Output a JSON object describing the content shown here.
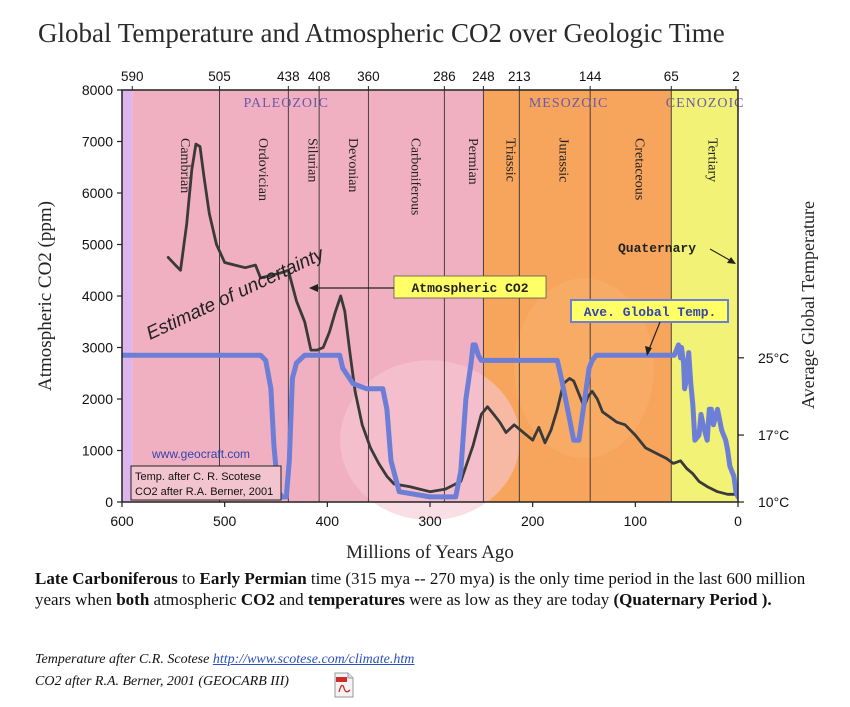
{
  "title": "Global Temperature and Atmospheric CO2 over Geologic Time",
  "chart_data": {
    "type": "line",
    "xlabel": "Millions of Years Ago",
    "ylabel": "Atmospheric CO2 (ppm)",
    "ylabel_right": "Average Global Temperature",
    "xlim": [
      600,
      0
    ],
    "ylim": [
      0,
      8000
    ],
    "x_ticks": [
      600,
      500,
      400,
      300,
      200,
      100,
      0
    ],
    "y_ticks": [
      0,
      1000,
      2000,
      3000,
      4000,
      5000,
      6000,
      7000,
      8000
    ],
    "top_ticks": [
      {
        "label": "590",
        "x": 590
      },
      {
        "label": "505",
        "x": 505
      },
      {
        "label": "438",
        "x": 438
      },
      {
        "label": "408",
        "x": 408
      },
      {
        "label": "360",
        "x": 360
      },
      {
        "label": "286",
        "x": 286
      },
      {
        "label": "248",
        "x": 248
      },
      {
        "label": "213",
        "x": 213
      },
      {
        "label": "144",
        "x": 144
      },
      {
        "label": "65",
        "x": 65
      },
      {
        "label": "2",
        "x": 2
      }
    ],
    "right_ticks": [
      {
        "label": "25°C",
        "ppm": 2800
      },
      {
        "label": "17°C",
        "ppm": 1300
      },
      {
        "label": "10°C",
        "ppm": 0
      }
    ],
    "eras": [
      {
        "name": "PALEOZOIC",
        "x_at": 440,
        "color": "#f0b0c2"
      },
      {
        "name": "MESOZOIC",
        "x_at": 165,
        "color": "#f7a45c"
      },
      {
        "name": "CENOZOIC",
        "x_at": 32,
        "color": "#f2f276"
      }
    ],
    "periods": [
      {
        "name": "Cambrian",
        "from": 590,
        "to": 505
      },
      {
        "name": "Ordovician",
        "from": 505,
        "to": 438
      },
      {
        "name": "Silurian",
        "from": 438,
        "to": 408
      },
      {
        "name": "Devonian",
        "from": 408,
        "to": 360
      },
      {
        "name": "Carboniferous",
        "from": 360,
        "to": 286
      },
      {
        "name": "Permian",
        "from": 286,
        "to": 248
      },
      {
        "name": "Triassic",
        "from": 248,
        "to": 213
      },
      {
        "name": "Jurassic",
        "from": 213,
        "to": 144
      },
      {
        "name": "Cretaceous",
        "from": 144,
        "to": 65
      },
      {
        "name": "Tertiary",
        "from": 65,
        "to": 2
      }
    ],
    "series": [
      {
        "name": "Atmospheric CO2",
        "color": "#3a3a3a",
        "x": [
          555,
          548,
          543,
          537,
          532,
          528,
          524,
          520,
          515,
          508,
          500,
          490,
          480,
          470,
          465,
          455,
          445,
          438,
          430,
          422,
          416,
          410,
          404,
          398,
          392,
          387,
          383,
          378,
          373,
          366,
          358,
          350,
          342,
          335,
          320,
          300,
          285,
          270,
          258,
          250,
          244,
          238,
          232,
          226,
          218,
          212,
          206,
          200,
          194,
          188,
          182,
          176,
          170,
          164,
          160,
          155,
          150,
          146,
          142,
          137,
          132,
          125,
          118,
          110,
          100,
          90,
          80,
          70,
          63,
          56,
          50,
          44,
          38,
          30,
          20,
          10,
          2
        ],
        "values": [
          4750,
          4600,
          4500,
          5400,
          6450,
          6950,
          6900,
          6300,
          5600,
          5000,
          4650,
          4600,
          4550,
          4600,
          4350,
          4400,
          4450,
          4500,
          3900,
          3500,
          2950,
          2950,
          3000,
          3300,
          3700,
          4000,
          3700,
          2900,
          2150,
          1500,
          1050,
          750,
          500,
          350,
          300,
          200,
          250,
          400,
          1100,
          1700,
          1850,
          1700,
          1550,
          1350,
          1500,
          1400,
          1300,
          1200,
          1450,
          1150,
          1400,
          1800,
          2300,
          2400,
          2350,
          2100,
          1850,
          2050,
          2150,
          2000,
          1750,
          1650,
          1550,
          1500,
          1300,
          1050,
          950,
          850,
          750,
          800,
          650,
          550,
          400,
          300,
          200,
          150,
          150
        ]
      },
      {
        "name": "Ave. Global Temp.",
        "color": "#6d7ed6",
        "x": [
          600,
          560,
          520,
          490,
          475,
          465,
          460,
          455,
          452,
          448,
          444,
          440,
          437,
          434,
          430,
          422,
          410,
          400,
          392,
          388,
          385,
          375,
          362,
          352,
          346,
          342,
          338,
          330,
          300,
          275,
          270,
          265,
          260,
          258,
          256,
          253,
          250,
          246,
          240,
          230,
          220,
          210,
          195,
          182,
          176,
          172,
          166,
          160,
          155,
          150,
          145,
          142,
          138,
          136,
          133,
          126,
          120,
          110,
          90,
          70,
          62,
          58,
          56,
          55,
          53,
          52,
          50,
          48,
          46,
          44,
          42,
          38,
          36,
          34,
          30,
          28,
          26,
          24,
          20,
          16,
          14,
          12,
          10,
          8,
          6,
          4,
          2,
          0
        ],
        "values": [
          2850,
          2850,
          2850,
          2850,
          2850,
          2850,
          2750,
          2200,
          1100,
          200,
          100,
          100,
          800,
          2400,
          2700,
          2850,
          2850,
          2850,
          2850,
          2850,
          2600,
          2300,
          2200,
          2200,
          2200,
          1800,
          800,
          200,
          100,
          100,
          600,
          2000,
          2700,
          3050,
          3050,
          2850,
          2750,
          2750,
          2750,
          2750,
          2750,
          2750,
          2750,
          2750,
          2750,
          2400,
          1800,
          1200,
          1200,
          1900,
          2600,
          2750,
          2850,
          2850,
          2850,
          2850,
          2850,
          2850,
          2850,
          2850,
          2850,
          3050,
          2800,
          3000,
          2700,
          2200,
          2400,
          2900,
          2300,
          1900,
          1200,
          1300,
          1700,
          1500,
          1200,
          1800,
          1800,
          1500,
          1800,
          1400,
          1300,
          1200,
          1000,
          700,
          600,
          500,
          200,
          100
        ]
      }
    ],
    "annotations": {
      "uncertainty": "Estimate of uncertainty",
      "co2_label": "Atmospheric CO2",
      "temp_label": "Ave. Global Temp.",
      "quaternary": "Quaternary",
      "website": "www.geocraft.com",
      "credit_temp": "Temp. after C. R. Scotese",
      "credit_co2": "CO2 after R.A. Berner, 2001"
    },
    "grid": false
  },
  "caption": {
    "p1": "Late Carboniferous",
    "p2": " to ",
    "p3": "Early Permian",
    "p4": " time (315 mya -- 270 mya) is the only time period in the last 600 million years when ",
    "p5": "both",
    "p6": " atmospheric ",
    "p7": "CO2",
    "p8": " and ",
    "p9": "temperatures",
    "p10": " were as low as they are today ",
    "p11": "(Quaternary Period )."
  },
  "credits": {
    "temp_text": "Temperature after C.R. Scotese ",
    "temp_link": "http://www.scotese.com/climate.htm",
    "co2_text": "CO2 after R.A. Berner, 2001 (GEOCARB III)"
  },
  "icons": {
    "pdf": "pdf-file-icon"
  }
}
